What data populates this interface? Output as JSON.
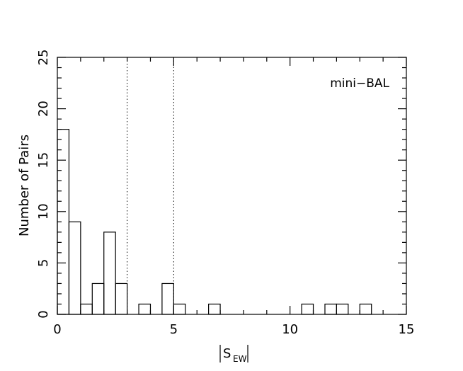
{
  "chart_data": {
    "type": "bar",
    "panel_label": "mini−BAL",
    "xlabel_main": "S",
    "xlabel_sub": "EW",
    "ylabel": "Number of Pairs",
    "xlim": [
      0,
      15
    ],
    "ylim": [
      0,
      25
    ],
    "x_ticks": [
      0,
      5,
      10,
      15
    ],
    "y_ticks": [
      0,
      5,
      10,
      15,
      20,
      25
    ],
    "bin_width": 0.5,
    "bins": [
      {
        "x0": 0.0,
        "count": 18
      },
      {
        "x0": 0.5,
        "count": 9
      },
      {
        "x0": 1.0,
        "count": 1
      },
      {
        "x0": 1.5,
        "count": 3
      },
      {
        "x0": 2.0,
        "count": 8
      },
      {
        "x0": 2.5,
        "count": 3
      },
      {
        "x0": 3.5,
        "count": 1
      },
      {
        "x0": 4.5,
        "count": 3
      },
      {
        "x0": 5.0,
        "count": 1
      },
      {
        "x0": 6.5,
        "count": 1
      },
      {
        "x0": 10.5,
        "count": 1
      },
      {
        "x0": 11.5,
        "count": 1
      },
      {
        "x0": 12.0,
        "count": 1
      },
      {
        "x0": 13.0,
        "count": 1
      }
    ],
    "reference_lines": [
      3,
      5
    ],
    "grid": false
  }
}
